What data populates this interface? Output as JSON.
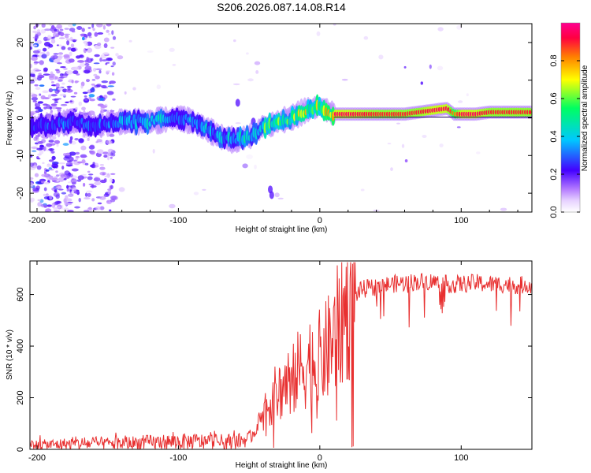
{
  "title": "S206.2026.087.14.08.R14",
  "chart_data": [
    {
      "type": "heatmap",
      "title": "S206.2026.087.14.08.R14",
      "xlabel": "Height of straight line (km)",
      "ylabel": "Frequency (Hz)",
      "xlim": [
        -205,
        150
      ],
      "ylim": [
        -25,
        25
      ],
      "xticks": [
        -200,
        -100,
        0,
        100
      ],
      "yticks": [
        -20,
        -10,
        0,
        10,
        20
      ],
      "colorbar": {
        "label": "Normalized spectral amplitude",
        "range": [
          0,
          1
        ],
        "ticks": [
          "0.0",
          "0.2",
          "0.4",
          "0.6",
          "0.8"
        ],
        "ticks_values": [
          0.0,
          0.2,
          0.4,
          0.6,
          0.8
        ],
        "colors": [
          "#ffffff",
          "#b57cff",
          "#4400ff",
          "#00c8ff",
          "#00ff60",
          "#ffff00",
          "#ff8000",
          "#ff0040",
          "#ff0080"
        ]
      },
      "ridge": {
        "x": [
          -205,
          -190,
          -175,
          -160,
          -140,
          -120,
          -100,
          -90,
          -80,
          -70,
          -60,
          -50,
          -45,
          -40,
          -35,
          -30,
          -20,
          -10,
          0,
          10,
          20,
          40,
          60,
          70,
          80,
          90,
          95,
          100,
          110,
          120,
          150
        ],
        "y": [
          -2,
          -2,
          -1,
          -2,
          -1,
          -1,
          0,
          -1,
          -3,
          -5,
          -6,
          -5,
          -4,
          -2,
          -2,
          -1,
          0,
          2,
          3,
          1,
          1,
          1,
          1,
          1.5,
          2,
          2.5,
          1,
          1,
          1,
          1.5,
          1.5
        ],
        "amplitude": [
          0.25,
          0.3,
          0.3,
          0.3,
          0.35,
          0.4,
          0.4,
          0.35,
          0.4,
          0.35,
          0.4,
          0.45,
          0.45,
          0.55,
          0.55,
          0.6,
          0.6,
          0.65,
          0.7,
          0.95,
          0.95,
          0.9,
          0.9,
          0.9,
          0.95,
          0.95,
          0.8,
          0.95,
          0.95,
          0.9,
          0.9
        ]
      }
    },
    {
      "type": "line",
      "xlabel": "Height of straight line (km)",
      "ylabel": "SNR (10 * v/v)",
      "xlim": [
        -205,
        150
      ],
      "ylim": [
        0,
        730
      ],
      "xticks": [
        -200,
        -100,
        0,
        100
      ],
      "yticks": [
        0,
        200,
        400,
        600
      ],
      "color": "#e83030",
      "series": [
        {
          "name": "SNR",
          "x": [
            -205,
            -190,
            -170,
            -150,
            -130,
            -110,
            -90,
            -70,
            -60,
            -50,
            -45,
            -42,
            -38,
            -35,
            -30,
            -25,
            -20,
            -15,
            -10,
            -5,
            0,
            5,
            10,
            15,
            20,
            25,
            30,
            40,
            50,
            60,
            70,
            80,
            90,
            100,
            110,
            120,
            130,
            140,
            150
          ],
          "values": [
            15,
            18,
            22,
            22,
            25,
            28,
            30,
            28,
            30,
            40,
            80,
            130,
            150,
            190,
            220,
            250,
            280,
            300,
            330,
            350,
            350,
            380,
            430,
            500,
            560,
            600,
            620,
            630,
            640,
            645,
            650,
            650,
            640,
            640,
            645,
            640,
            640,
            635,
            640
          ]
        }
      ]
    }
  ]
}
